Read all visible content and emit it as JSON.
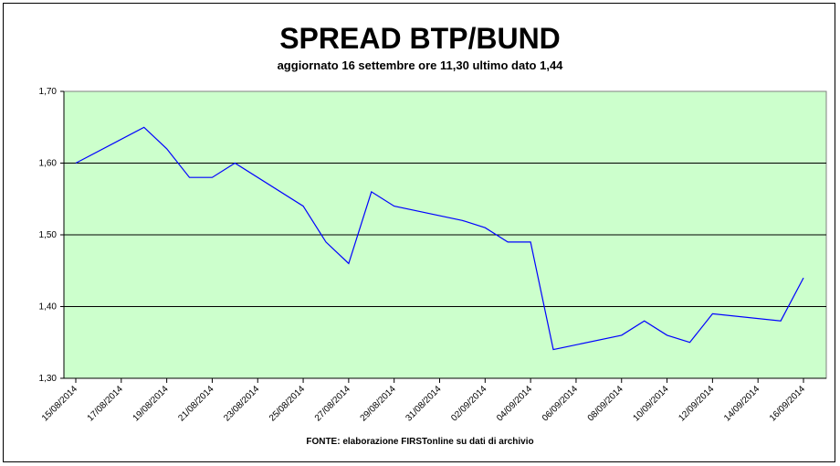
{
  "chart_data": {
    "type": "line",
    "title": "SPREAD BTP/BUND",
    "subtitle": "aggiornato 16 settembre ore 11,30 ultimo dato 1,44",
    "source": "FONTE: elaborazione FIRSTonline su dati di archivio",
    "ylim": [
      1.3,
      1.7
    ],
    "yticks": [
      "1,30",
      "1,40",
      "1,50",
      "1,60",
      "1,70"
    ],
    "ytick_values": [
      1.3,
      1.4,
      1.5,
      1.6,
      1.7
    ],
    "xtick_labels": [
      "15/08/2014",
      "17/08/2014",
      "19/08/2014",
      "21/08/2014",
      "23/08/2014",
      "25/08/2014",
      "27/08/2014",
      "29/08/2014",
      "31/08/2014",
      "02/09/2014",
      "04/09/2014",
      "06/09/2014",
      "08/09/2014",
      "10/09/2014",
      "12/09/2014",
      "14/09/2014",
      "16/09/2014"
    ],
    "x_start": "15/08/2014",
    "x_end": "16/09/2014",
    "series": [
      {
        "color": "#0000ff",
        "points": [
          {
            "x": "15/08/2014",
            "y": 1.6
          },
          {
            "x": "18/08/2014",
            "y": 1.65
          },
          {
            "x": "19/08/2014",
            "y": 1.62
          },
          {
            "x": "20/08/2014",
            "y": 1.58
          },
          {
            "x": "21/08/2014",
            "y": 1.58
          },
          {
            "x": "22/08/2014",
            "y": 1.6
          },
          {
            "x": "25/08/2014",
            "y": 1.54
          },
          {
            "x": "26/08/2014",
            "y": 1.49
          },
          {
            "x": "27/08/2014",
            "y": 1.46
          },
          {
            "x": "28/08/2014",
            "y": 1.56
          },
          {
            "x": "29/08/2014",
            "y": 1.54
          },
          {
            "x": "01/09/2014",
            "y": 1.52
          },
          {
            "x": "02/09/2014",
            "y": 1.51
          },
          {
            "x": "03/09/2014",
            "y": 1.49
          },
          {
            "x": "04/09/2014",
            "y": 1.49
          },
          {
            "x": "05/09/2014",
            "y": 1.34
          },
          {
            "x": "08/09/2014",
            "y": 1.36
          },
          {
            "x": "09/09/2014",
            "y": 1.38
          },
          {
            "x": "10/09/2014",
            "y": 1.36
          },
          {
            "x": "11/09/2014",
            "y": 1.35
          },
          {
            "x": "12/09/2014",
            "y": 1.39
          },
          {
            "x": "15/09/2014",
            "y": 1.38
          },
          {
            "x": "16/09/2014",
            "y": 1.44
          }
        ]
      }
    ],
    "plot_background": "#ccffcc",
    "gridlines": "horizontal"
  }
}
